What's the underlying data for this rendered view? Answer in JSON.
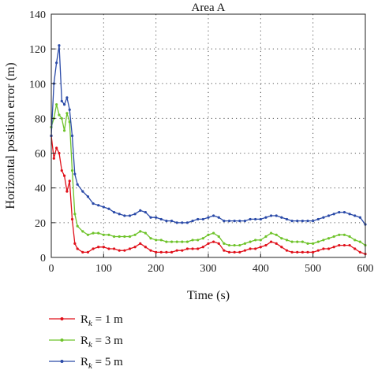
{
  "chart_data": {
    "type": "line",
    "title": "Area A",
    "xlabel": "Time (s)",
    "ylabel": "Horizontal position error (m)",
    "xlim": [
      0,
      600
    ],
    "ylim": [
      0,
      140
    ],
    "xticks": [
      0,
      100,
      200,
      300,
      400,
      500,
      600
    ],
    "yticks": [
      0,
      20,
      40,
      60,
      80,
      100,
      120,
      140
    ],
    "grid": true,
    "legend_position": "below",
    "series": [
      {
        "name": "R_k = 1 m",
        "legend_base": "R",
        "legend_sub": "k",
        "legend_rest": " = 1 m",
        "color": "#e0101a",
        "x": [
          0,
          5,
          10,
          15,
          20,
          25,
          30,
          35,
          40,
          45,
          50,
          60,
          70,
          80,
          90,
          100,
          110,
          120,
          130,
          140,
          150,
          160,
          170,
          180,
          190,
          200,
          210,
          220,
          230,
          240,
          250,
          260,
          270,
          280,
          290,
          300,
          310,
          320,
          330,
          340,
          350,
          360,
          370,
          380,
          390,
          400,
          410,
          420,
          430,
          440,
          450,
          460,
          470,
          480,
          490,
          500,
          510,
          520,
          530,
          540,
          550,
          560,
          570,
          580,
          590,
          600
        ],
        "values": [
          70,
          57,
          63,
          60,
          50,
          47,
          38,
          44,
          22,
          8,
          5,
          3,
          3,
          5,
          6,
          6,
          5,
          5,
          4,
          4,
          5,
          6,
          8,
          6,
          4,
          3,
          3,
          3,
          3,
          4,
          4,
          5,
          5,
          5,
          6,
          8,
          9,
          8,
          4,
          3,
          3,
          3,
          4,
          5,
          5,
          6,
          7,
          9,
          8,
          6,
          4,
          3,
          3,
          3,
          3,
          3,
          4,
          5,
          5,
          6,
          7,
          7,
          7,
          5,
          3,
          2
        ]
      },
      {
        "name": "R_k = 3 m",
        "legend_base": "R",
        "legend_sub": "k",
        "legend_rest": " = 3 m",
        "color": "#6ec32a",
        "x": [
          0,
          5,
          10,
          15,
          20,
          25,
          30,
          35,
          40,
          45,
          50,
          60,
          70,
          80,
          90,
          100,
          110,
          120,
          130,
          140,
          150,
          160,
          170,
          180,
          190,
          200,
          210,
          220,
          230,
          240,
          250,
          260,
          270,
          280,
          290,
          300,
          310,
          320,
          330,
          340,
          350,
          360,
          370,
          380,
          390,
          400,
          410,
          420,
          430,
          440,
          450,
          460,
          470,
          480,
          490,
          500,
          510,
          520,
          530,
          540,
          550,
          560,
          570,
          580,
          590,
          600
        ],
        "values": [
          75,
          80,
          88,
          82,
          80,
          73,
          83,
          78,
          50,
          25,
          18,
          15,
          13,
          14,
          14,
          13,
          13,
          12,
          12,
          12,
          12,
          13,
          15,
          14,
          11,
          10,
          10,
          9,
          9,
          9,
          9,
          9,
          10,
          10,
          11,
          13,
          14,
          12,
          8,
          7,
          7,
          7,
          8,
          9,
          10,
          10,
          12,
          14,
          13,
          11,
          10,
          9,
          9,
          9,
          8,
          8,
          9,
          10,
          11,
          12,
          13,
          13,
          12,
          10,
          9,
          7
        ]
      },
      {
        "name": "R_k = 5 m",
        "legend_base": "R",
        "legend_sub": "k",
        "legend_rest": " = 5 m",
        "color": "#2a4aa8",
        "x": [
          0,
          5,
          10,
          15,
          20,
          25,
          30,
          35,
          40,
          45,
          50,
          60,
          70,
          80,
          90,
          100,
          110,
          120,
          130,
          140,
          150,
          160,
          170,
          180,
          190,
          200,
          210,
          220,
          230,
          240,
          250,
          260,
          270,
          280,
          290,
          300,
          310,
          320,
          330,
          340,
          350,
          360,
          370,
          380,
          390,
          400,
          410,
          420,
          430,
          440,
          450,
          460,
          470,
          480,
          490,
          500,
          510,
          520,
          530,
          540,
          550,
          560,
          570,
          580,
          590,
          600
        ],
        "values": [
          70,
          100,
          112,
          122,
          90,
          88,
          92,
          85,
          70,
          48,
          42,
          38,
          35,
          31,
          30,
          29,
          28,
          26,
          25,
          24,
          24,
          25,
          27,
          26,
          23,
          23,
          22,
          21,
          21,
          20,
          20,
          20,
          21,
          22,
          22,
          23,
          24,
          23,
          21,
          21,
          21,
          21,
          21,
          22,
          22,
          22,
          23,
          24,
          24,
          23,
          22,
          21,
          21,
          21,
          21,
          21,
          22,
          23,
          24,
          25,
          26,
          26,
          25,
          24,
          23,
          19
        ]
      }
    ]
  }
}
